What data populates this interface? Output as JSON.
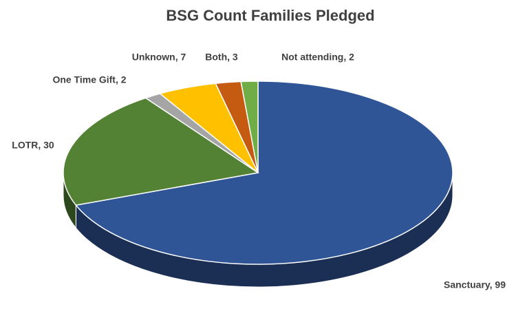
{
  "chart_data": {
    "type": "pie",
    "title": "BSG Count Families Pledged",
    "values": [
      99,
      30,
      2,
      7,
      3,
      2
    ],
    "value_labels": [
      "Sanctuary, 99",
      "LOTR, 30",
      "One Time Gift, 2",
      "Unknown, 7",
      "Both, 3",
      "Not attending, 2"
    ],
    "colors": [
      "#2f5597",
      "#548235",
      "#a5a5a5",
      "#ffc000",
      "#c55a11",
      "#70ad47"
    ]
  }
}
